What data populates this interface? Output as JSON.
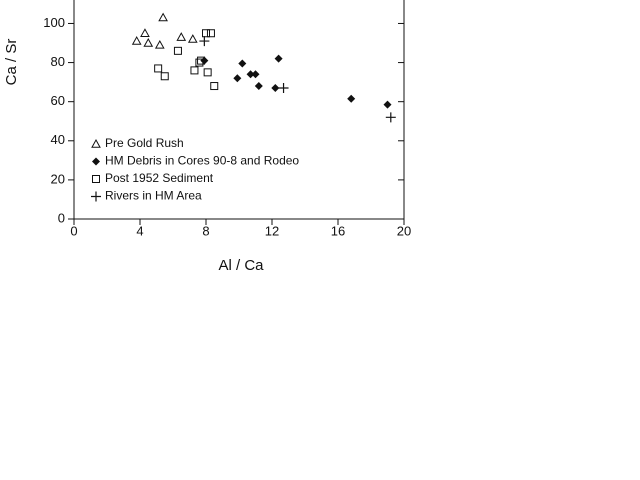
{
  "chart_data": {
    "type": "scatter",
    "x_label": "Al / Ca",
    "y_label": "Ca / Sr",
    "xlim": [
      0,
      20
    ],
    "xticks": [
      0,
      4,
      8,
      12,
      16,
      20
    ],
    "ylim": [
      0,
      112
    ],
    "yticks": [
      0,
      20,
      40,
      60,
      80,
      100
    ],
    "legend": "lower left",
    "series": [
      {
        "name": "Pre Gold Rush",
        "color": "#111111",
        "marker": "triangle-open",
        "x": [
          3.8,
          4.3,
          4.5,
          5.2,
          5.4,
          6.5,
          7.2
        ],
        "values": [
          91,
          95,
          90,
          89,
          103,
          93,
          92
        ]
      },
      {
        "name": "HM Debris in Cores 90-8 and Rodeo",
        "color": "#111111",
        "marker": "diamond-filled",
        "x": [
          7.9,
          9.9,
          10.2,
          10.7,
          11.0,
          11.2,
          12.2,
          12.4,
          16.8,
          19.0
        ],
        "values": [
          81,
          72,
          79.5,
          74,
          74,
          68,
          67,
          82,
          61.5,
          58.5
        ]
      },
      {
        "name": "Post 1952 Sediment",
        "color": "#111111",
        "marker": "square-open",
        "x": [
          5.1,
          5.5,
          6.3,
          7.3,
          7.6,
          7.7,
          8.0,
          8.3,
          8.1,
          8.5
        ],
        "values": [
          77,
          73,
          86,
          76,
          80,
          81,
          95,
          95,
          75,
          68
        ]
      },
      {
        "name": "Rivers in HM Area",
        "color": "#111111",
        "marker": "plus",
        "x": [
          7.9,
          12.7,
          19.2
        ],
        "values": [
          91,
          67,
          52
        ]
      }
    ]
  }
}
